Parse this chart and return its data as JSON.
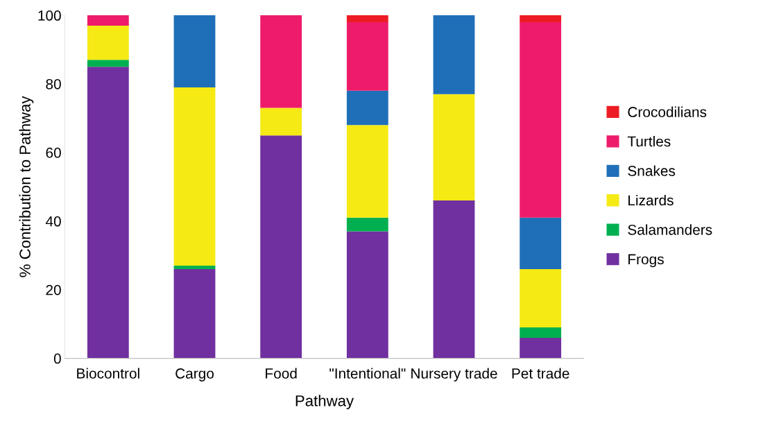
{
  "chart_data": {
    "type": "bar",
    "stacked": true,
    "xlabel": "Pathway",
    "ylabel": "% Contribution to Pathway",
    "categories": [
      "Biocontrol",
      "Cargo",
      "Food",
      "\"Intentional\"",
      "Nursery trade",
      "Pet trade"
    ],
    "series": [
      {
        "name": "Frogs",
        "color": "#7030a0",
        "values": [
          85,
          26,
          65,
          37,
          46,
          6
        ]
      },
      {
        "name": "Salamanders",
        "color": "#00b050",
        "values": [
          2,
          1,
          0,
          4,
          0,
          3
        ]
      },
      {
        "name": "Lizards",
        "color": "#f5ea14",
        "values": [
          10,
          52,
          8,
          27,
          31,
          17
        ]
      },
      {
        "name": "Snakes",
        "color": "#1f6fb8",
        "values": [
          0,
          21,
          0,
          10,
          23,
          15
        ]
      },
      {
        "name": "Turtles",
        "color": "#ee1b6b",
        "values": [
          3,
          0,
          27,
          20,
          0,
          57
        ]
      },
      {
        "name": "Crocodilians",
        "color": "#ed1c24",
        "values": [
          0,
          0,
          0,
          2,
          0,
          2
        ]
      }
    ],
    "ylim": [
      0,
      100
    ],
    "yticks": [
      0,
      20,
      40,
      60,
      80,
      100
    ],
    "grid": false,
    "legend": "right"
  }
}
